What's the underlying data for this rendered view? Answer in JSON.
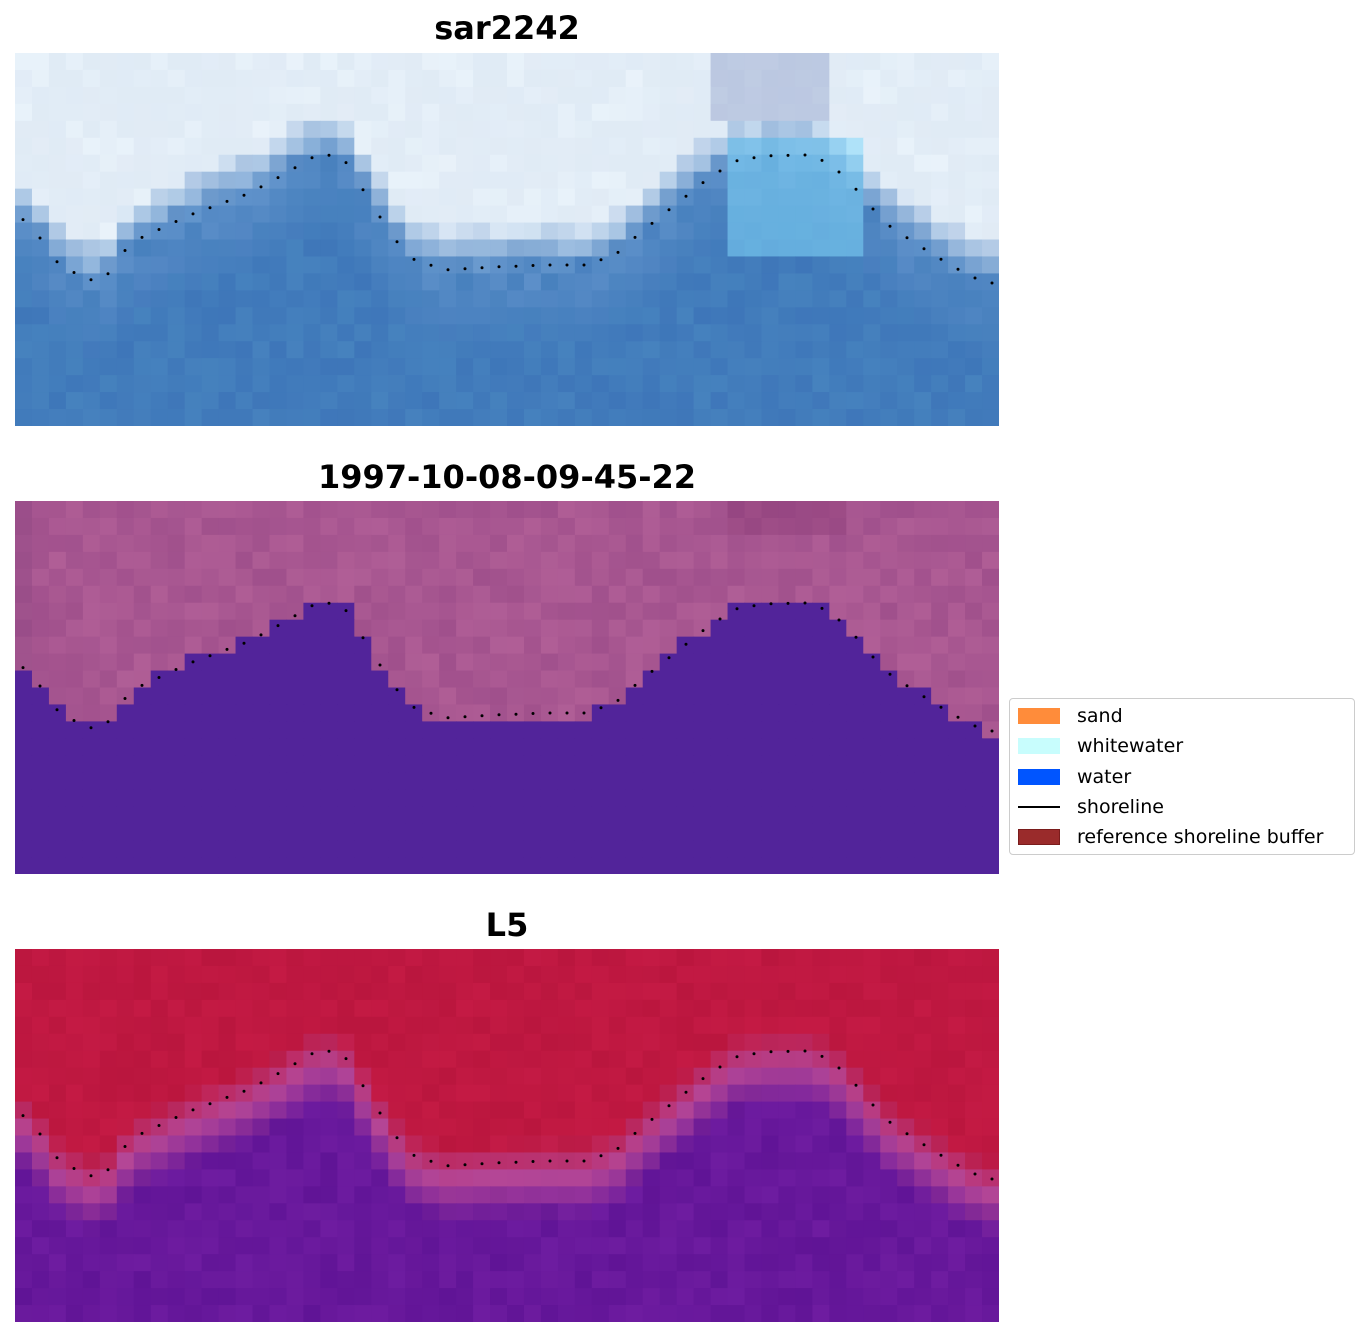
{
  "panels": [
    {
      "id": "sar",
      "title": "sar2242"
    },
    {
      "id": "classified",
      "title": "1997-10-08-09-45-22"
    },
    {
      "id": "l5",
      "title": "L5"
    }
  ],
  "legend": [
    {
      "label": "sand",
      "color": "#ff8c3a",
      "type": "patch",
      "icon": "sand-swatch"
    },
    {
      "label": "whitewater",
      "color": "#c8fdfd",
      "type": "patch",
      "icon": "whitewater-swatch"
    },
    {
      "label": "water",
      "color": "#0055ff",
      "type": "patch",
      "icon": "water-swatch"
    },
    {
      "label": "shoreline",
      "color": "#000000",
      "type": "line",
      "icon": "shoreline-line"
    },
    {
      "label": "reference shoreline buffer",
      "color": "#9a2b2b",
      "type": "patch",
      "icon": "buffer-swatch"
    }
  ],
  "colors": {
    "classified_land": "#b15e96",
    "classified_water": "#52249a",
    "l5_land": "#c21a45",
    "l5_water": "#6a1f9f",
    "shoreline_dots": "#000000"
  }
}
